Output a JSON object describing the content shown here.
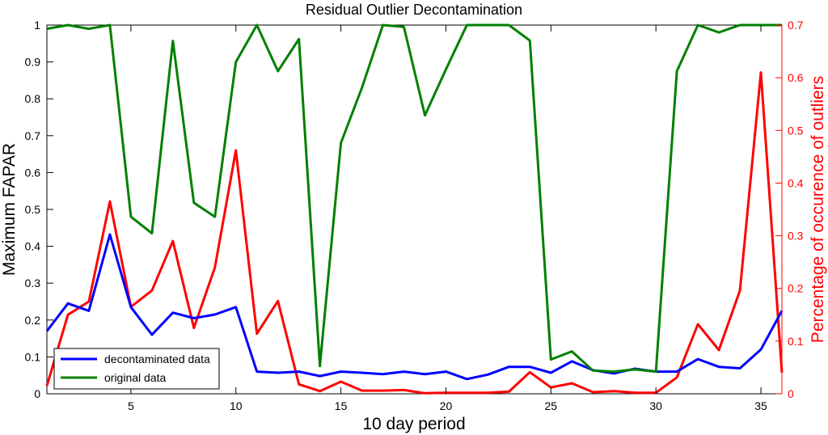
{
  "chart_data": {
    "type": "line",
    "title": "Residual Outlier Decontamination",
    "xlabel": "10 day period",
    "ylabel_left": "Maximum FAPAR",
    "ylabel_right": "Percentage of occurence of outliers",
    "xlim": [
      1,
      36
    ],
    "ylim_left": [
      0,
      1
    ],
    "ylim_right": [
      0,
      0.7
    ],
    "x_ticks": [
      5,
      10,
      15,
      20,
      25,
      30,
      35
    ],
    "y_ticks_left": [
      "0",
      "0.1",
      "0.2",
      "0.3",
      "0.4",
      "0.5",
      "0.6",
      "0.7",
      "0.8",
      "0.9",
      "1"
    ],
    "y_ticks_right": [
      "0",
      "0.1",
      "0.2",
      "0.3",
      "0.4",
      "0.5",
      "0.6",
      "0.7"
    ],
    "grid": false,
    "legend_position": "bottom-left",
    "x": [
      1,
      2,
      3,
      4,
      5,
      6,
      7,
      8,
      9,
      10,
      11,
      12,
      13,
      14,
      15,
      16,
      17,
      18,
      19,
      20,
      21,
      22,
      23,
      24,
      25,
      26,
      27,
      28,
      29,
      30,
      31,
      32,
      33,
      34,
      35,
      36
    ],
    "series": [
      {
        "name": "decontaminated data",
        "axis": "left",
        "color": "#0000ff",
        "values": [
          0.17,
          0.245,
          0.225,
          0.432,
          0.235,
          0.16,
          0.22,
          0.205,
          0.215,
          0.235,
          0.06,
          0.057,
          0.06,
          0.048,
          0.06,
          0.057,
          0.053,
          0.06,
          0.053,
          0.06,
          0.04,
          0.052,
          0.073,
          0.073,
          0.057,
          0.088,
          0.064,
          0.055,
          0.068,
          0.06,
          0.06,
          0.094,
          0.073,
          0.069,
          0.12,
          0.225
        ]
      },
      {
        "name": "original data",
        "axis": "left",
        "color": "#008000",
        "values": [
          0.99,
          1.0,
          0.99,
          1.0,
          0.48,
          0.435,
          0.957,
          0.518,
          0.48,
          0.9,
          1.0,
          0.875,
          0.962,
          0.075,
          0.68,
          0.83,
          1.0,
          0.995,
          0.755,
          0.88,
          1.0,
          1.0,
          1.0,
          0.958,
          0.093,
          0.115,
          0.063,
          0.06,
          0.066,
          0.06,
          0.875,
          1.0,
          0.98,
          1.0,
          1.0,
          1.0
        ]
      },
      {
        "axis": "right",
        "color": "#ff0000",
        "values": [
          0.015,
          0.15,
          0.175,
          0.365,
          0.165,
          0.196,
          0.29,
          0.125,
          0.24,
          0.462,
          0.114,
          0.176,
          0.018,
          0.005,
          0.023,
          0.006,
          0.006,
          0.007,
          0.001,
          0.002,
          0.002,
          0.002,
          0.004,
          0.041,
          0.012,
          0.02,
          0.003,
          0.005,
          0.002,
          0.002,
          0.031,
          0.132,
          0.083,
          0.196,
          0.61,
          0.04
        ]
      }
    ]
  }
}
